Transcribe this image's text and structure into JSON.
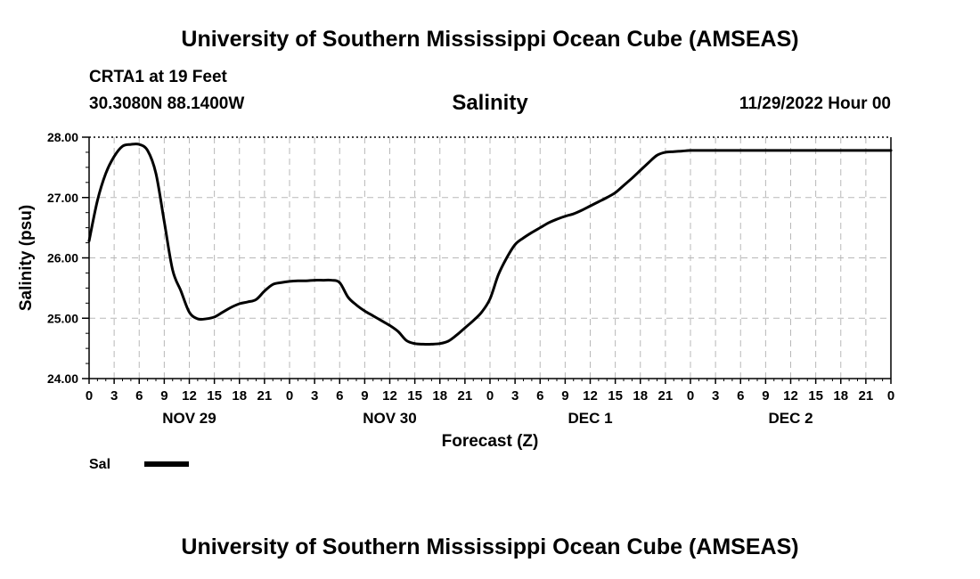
{
  "header": {
    "top_title": "University of Southern Mississippi Ocean Cube (AMSEAS)",
    "station": "CRTA1 at 19 Feet",
    "coords": "30.3080N  88.1400W",
    "date_label": "11/29/2022 Hour 00",
    "bottom_title": "University of Southern Mississippi Ocean Cube (AMSEAS)"
  },
  "chart_data": {
    "type": "line",
    "title": "Salinity",
    "xlabel": "Forecast (Z)",
    "ylabel": "Salinity (psu)",
    "ylim": [
      24.0,
      28.0
    ],
    "xlim": [
      0,
      96
    ],
    "y_ticks": [
      "24.00",
      "25.00",
      "26.00",
      "27.00",
      "28.00"
    ],
    "x_tick_labels": [
      "0",
      "3",
      "6",
      "9",
      "12",
      "15",
      "18",
      "21",
      "0",
      "3",
      "6",
      "9",
      "12",
      "15",
      "18",
      "21",
      "0",
      "3",
      "6",
      "9",
      "12",
      "15",
      "18",
      "21",
      "0",
      "3",
      "6",
      "9",
      "12",
      "15",
      "18",
      "21",
      "0"
    ],
    "day_labels": [
      {
        "hour": 12,
        "label": "NOV 29"
      },
      {
        "hour": 36,
        "label": "NOV 30"
      },
      {
        "hour": 60,
        "label": "DEC 1"
      },
      {
        "hour": 84,
        "label": "DEC 2"
      }
    ],
    "grid": true,
    "legend": "bottom-left",
    "series": [
      {
        "name": "Sal",
        "color": "#000000",
        "x": [
          0,
          1,
          2,
          3,
          4,
          5,
          6,
          7,
          8,
          9,
          10,
          11,
          12,
          13,
          14,
          15,
          16,
          17,
          18,
          19,
          20,
          21,
          22,
          23,
          24,
          25,
          26,
          27,
          28,
          29,
          30,
          31,
          32,
          33,
          34,
          35,
          36,
          37,
          38,
          39,
          40,
          41,
          42,
          43,
          44,
          45,
          46,
          47,
          48,
          49,
          50,
          51,
          52,
          53,
          54,
          55,
          56,
          57,
          58,
          59,
          60,
          61,
          62,
          63,
          64,
          65,
          66,
          67,
          68,
          69,
          70,
          71,
          72,
          73,
          74,
          75,
          76,
          77,
          78,
          79,
          80,
          81,
          82,
          83,
          84,
          85,
          86,
          87,
          88,
          89,
          90,
          91,
          92,
          93,
          94,
          95,
          96
        ],
        "values": [
          26.28,
          26.95,
          27.4,
          27.68,
          27.85,
          27.88,
          27.88,
          27.78,
          27.4,
          26.6,
          25.8,
          25.45,
          25.1,
          24.99,
          24.99,
          25.02,
          25.1,
          25.18,
          25.24,
          25.27,
          25.31,
          25.45,
          25.56,
          25.59,
          25.61,
          25.62,
          25.62,
          25.63,
          25.63,
          25.63,
          25.59,
          25.35,
          25.22,
          25.12,
          25.04,
          24.96,
          24.88,
          24.78,
          24.63,
          24.58,
          24.57,
          24.57,
          24.58,
          24.62,
          24.72,
          24.84,
          24.96,
          25.1,
          25.32,
          25.72,
          26.0,
          26.22,
          26.33,
          26.42,
          26.5,
          26.58,
          26.64,
          26.69,
          26.73,
          26.79,
          26.86,
          26.93,
          27.0,
          27.08,
          27.2,
          27.32,
          27.45,
          27.58,
          27.7,
          27.75,
          27.76,
          27.77,
          27.78,
          27.78,
          27.78,
          27.78,
          27.78,
          27.78,
          27.78,
          27.78,
          27.78,
          27.78,
          27.78,
          27.78,
          27.78,
          27.78,
          27.78,
          27.78,
          27.78,
          27.78,
          27.78,
          27.78,
          27.78,
          27.78,
          27.78,
          27.78,
          27.78
        ]
      }
    ]
  }
}
